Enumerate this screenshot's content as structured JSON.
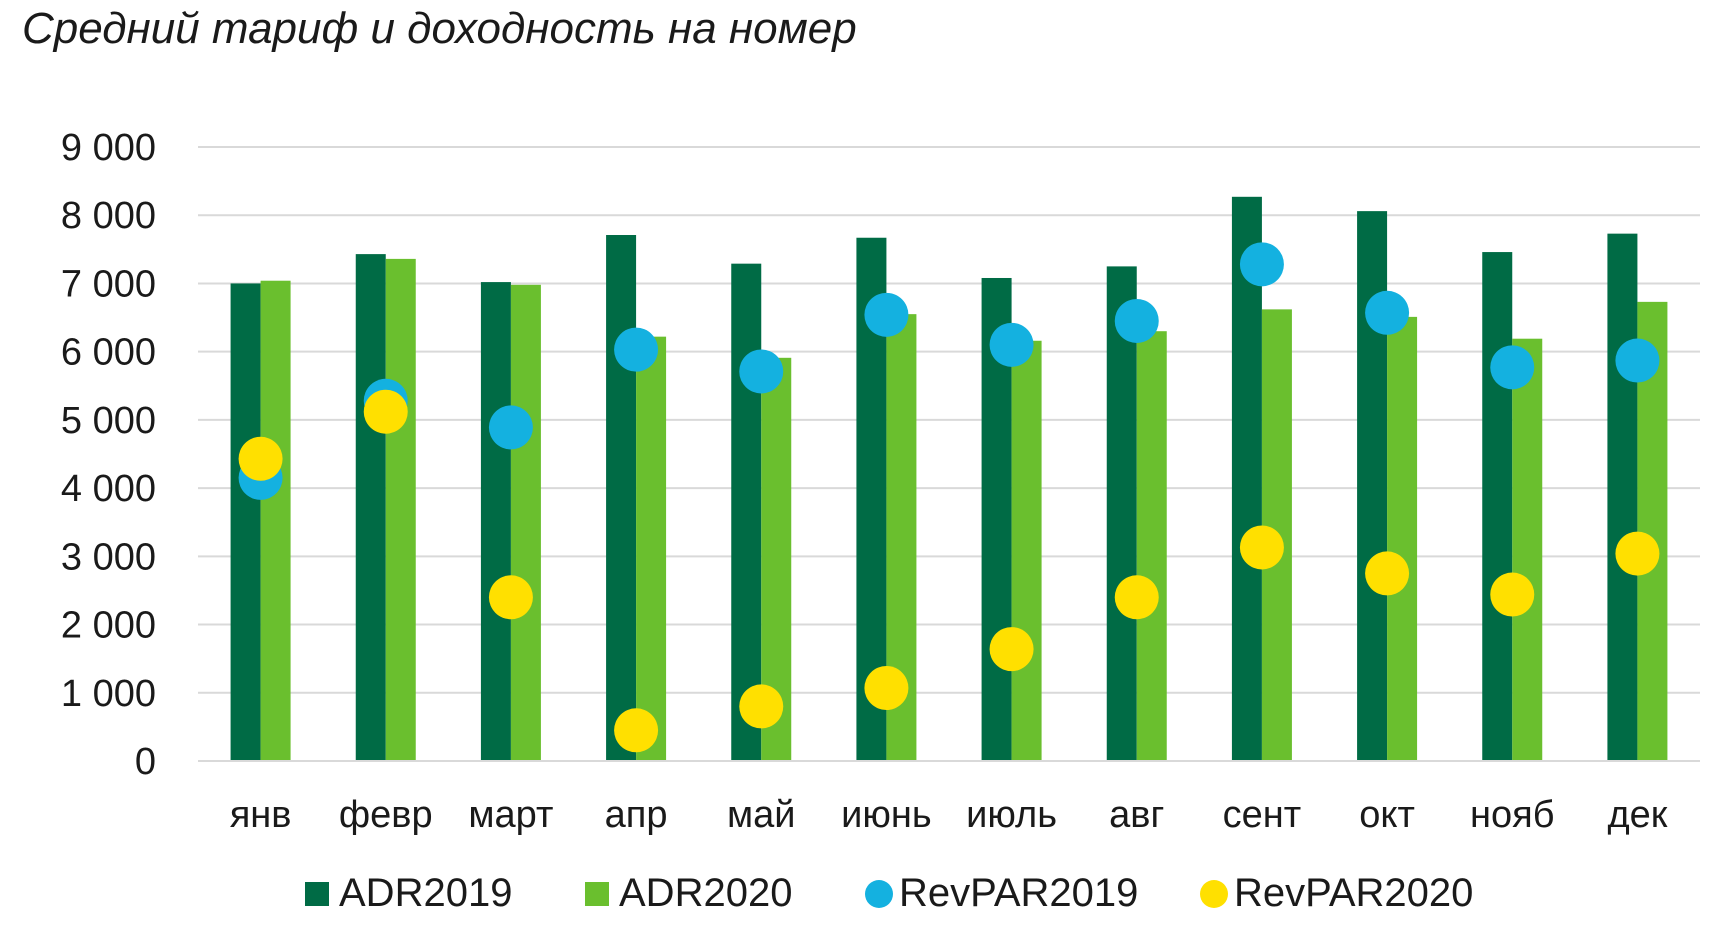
{
  "chart_data": {
    "type": "bar",
    "title": "Средний тариф и доходность на номер",
    "xlabel": "",
    "ylabel": "",
    "ylim": [
      0,
      9000
    ],
    "yticks": [
      0,
      1000,
      2000,
      3000,
      4000,
      5000,
      6000,
      7000,
      8000,
      9000
    ],
    "ytick_labels": [
      "0",
      "1 000",
      "2 000",
      "3 000",
      "4 000",
      "5 000",
      "6 000",
      "7 000",
      "8 000",
      "9 000"
    ],
    "grid": true,
    "legend_position": "bottom",
    "categories": [
      "янв",
      "февр",
      "март",
      "апр",
      "май",
      "июнь",
      "июль",
      "авг",
      "сент",
      "окт",
      "нояб",
      "дек"
    ],
    "series": [
      {
        "name": "ADR2019",
        "type": "bar",
        "color": "#006b45",
        "marker": "square",
        "values": [
          7000,
          7430,
          7020,
          7710,
          7290,
          7670,
          7080,
          7250,
          8270,
          8060,
          7460,
          7730
        ]
      },
      {
        "name": "ADR2020",
        "type": "bar",
        "color": "#6abf2e",
        "marker": "square",
        "values": [
          7040,
          7360,
          6980,
          6220,
          5910,
          6550,
          6160,
          6300,
          6620,
          6510,
          6190,
          6730
        ]
      },
      {
        "name": "RevPAR2019",
        "type": "scatter",
        "color": "#14b1e0",
        "marker": "circle",
        "values": [
          4150,
          5280,
          4890,
          6030,
          5710,
          6540,
          6100,
          6450,
          7280,
          6570,
          5770,
          5870
        ]
      },
      {
        "name": "RevPAR2020",
        "type": "scatter",
        "color": "#ffe000",
        "marker": "circle",
        "values": [
          4430,
          5120,
          2400,
          450,
          800,
          1070,
          1640,
          2400,
          3130,
          2750,
          2440,
          3040
        ]
      }
    ]
  }
}
